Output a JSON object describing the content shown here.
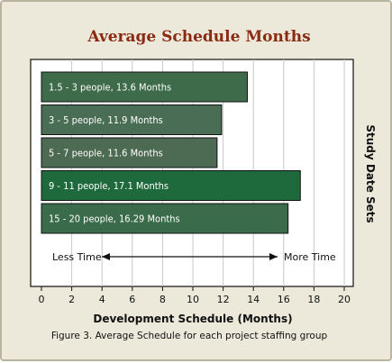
{
  "chart_data": {
    "type": "bar",
    "orientation": "horizontal",
    "title": "Average Schedule Months",
    "xlabel": "Development Schedule  (Months)",
    "ylabel": "Study Date Sets",
    "caption": "Figure 3. Average Schedule for each project staffing group",
    "xlim": [
      0,
      20
    ],
    "xticks": [
      "0",
      "2",
      "4",
      "6",
      "8",
      "10",
      "12",
      "14",
      "16",
      "18",
      "20"
    ],
    "grid": "vertical",
    "categories": [
      "1.5 - 3  people",
      "3 - 5  people",
      "5 - 7  people",
      "9 - 11  people",
      "15 - 20  people"
    ],
    "values": [
      13.6,
      11.9,
      11.6,
      17.1,
      16.29
    ],
    "bar_labels": [
      "1.5 - 3  people, 13.6 Months",
      "3 - 5  people, 11.9 Months",
      "5 - 7  people, 11.6 Months",
      "9 - 11  people, 17.1 Months",
      "15 - 20  people, 16.29 Months"
    ],
    "bar_colors": [
      "#3e6b4a",
      "#4a6d55",
      "#4d6a52",
      "#1f6a3c",
      "#3a6b4a"
    ],
    "annotation": {
      "left": "Less Time",
      "right": "More Time"
    }
  }
}
